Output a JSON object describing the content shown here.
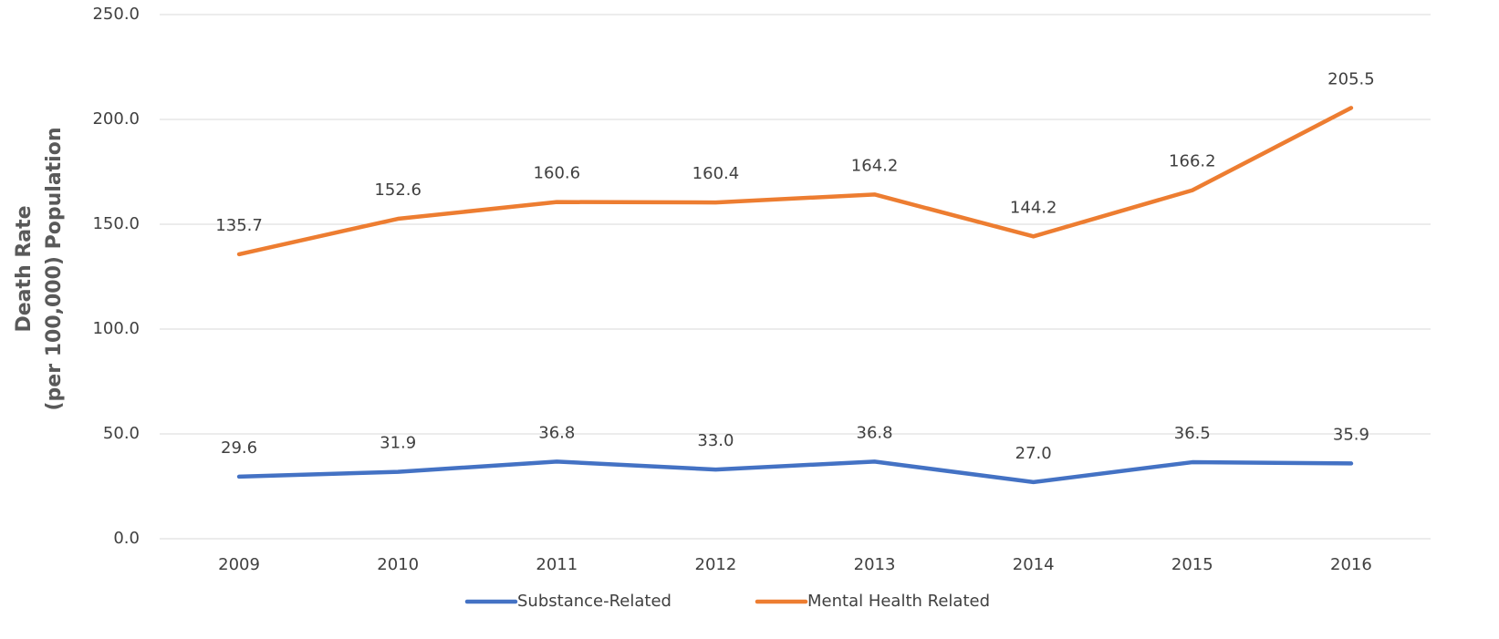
{
  "chart_data": {
    "type": "line",
    "ylabel": [
      "Death  Rate",
      "(per 100,000) Population"
    ],
    "categories": [
      "2009",
      "2010",
      "2011",
      "2012",
      "2013",
      "2014",
      "2015",
      "2016"
    ],
    "series": [
      {
        "name": "Substance-Related",
        "color": "#4472c4",
        "values": [
          29.6,
          31.9,
          36.8,
          33.0,
          36.8,
          27.0,
          36.5,
          35.9
        ],
        "value_labels": [
          "29.6",
          "31.9",
          "36.8",
          "33.0",
          "36.8",
          "27.0",
          "36.5",
          "35.9"
        ]
      },
      {
        "name": "Mental Health Related",
        "color": "#ed7d31",
        "values": [
          135.7,
          152.6,
          160.6,
          160.4,
          164.2,
          144.2,
          166.2,
          205.5
        ],
        "value_labels": [
          "135.7",
          "152.6",
          "160.6",
          "160.4",
          "164.2",
          "144.2",
          "166.2",
          "205.5"
        ]
      }
    ],
    "ylim": [
      0,
      250
    ],
    "yticks": [
      {
        "value": 0,
        "label": "0.0"
      },
      {
        "value": 50,
        "label": "50.0"
      },
      {
        "value": 100,
        "label": "100.0"
      },
      {
        "value": 150,
        "label": "150.0"
      },
      {
        "value": 200,
        "label": "200.0"
      },
      {
        "value": 250,
        "label": "250.0"
      }
    ],
    "grid": true,
    "legend": "bottom"
  }
}
